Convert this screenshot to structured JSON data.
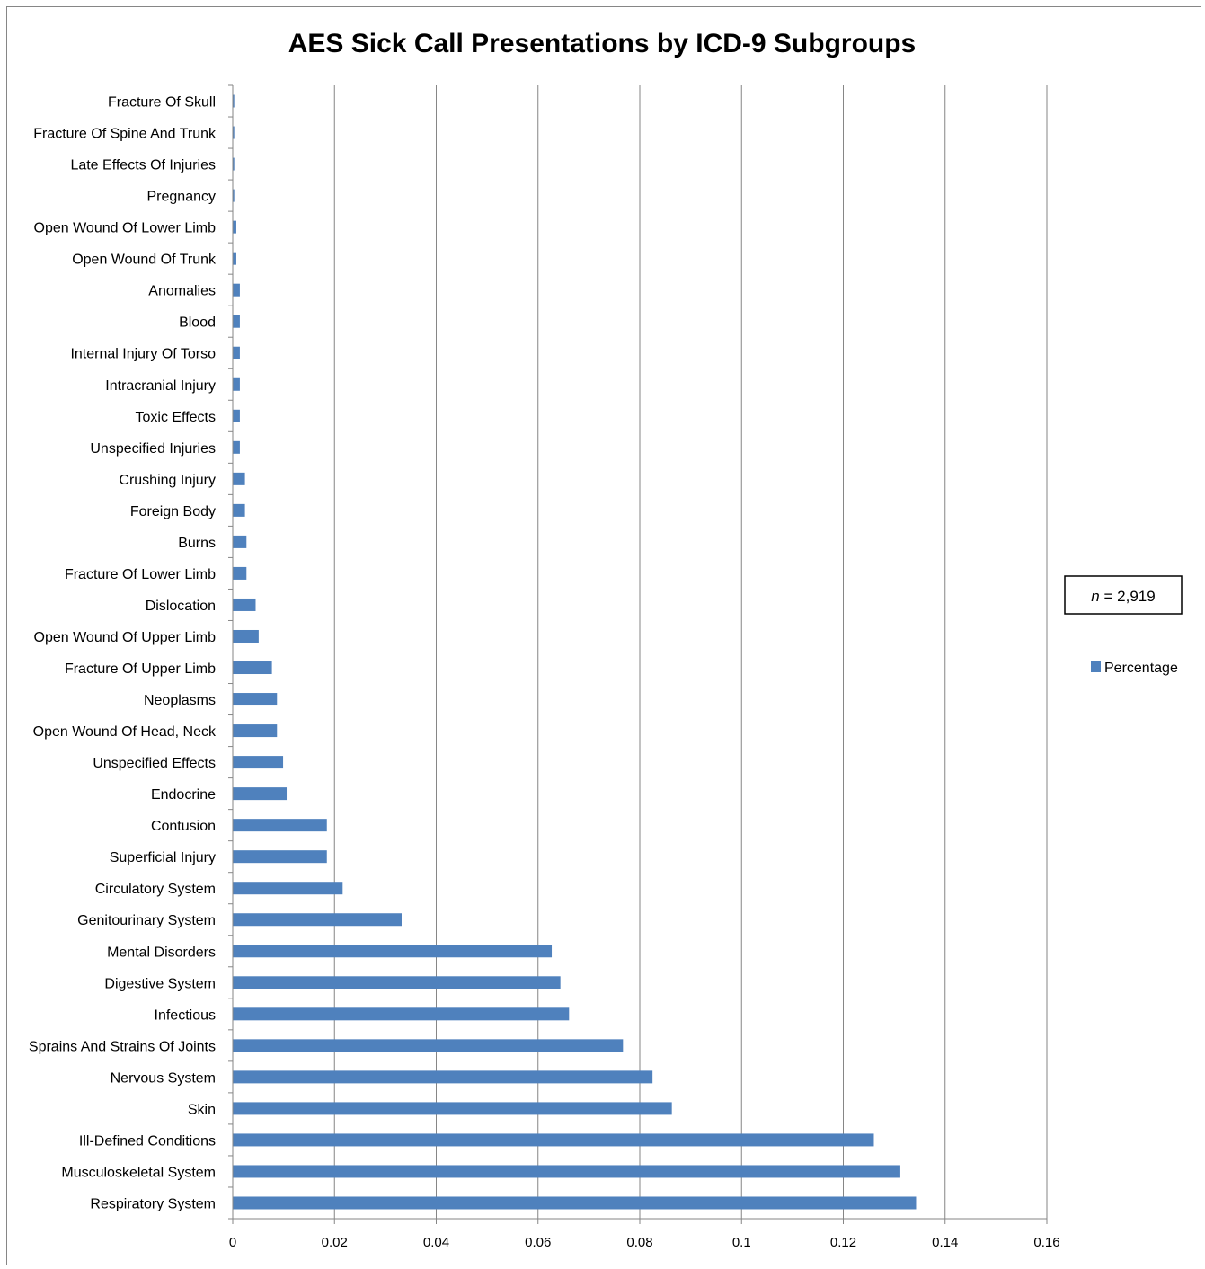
{
  "chart_data": {
    "type": "bar",
    "orientation": "horizontal",
    "title": "AES Sick Call Presentations by ICD-9 Subgroups",
    "xlabel": "",
    "ylabel": "",
    "xlim": [
      0,
      0.16
    ],
    "x_ticks": [
      "0",
      "0.02",
      "0.04",
      "0.06",
      "0.08",
      "0.1",
      "0.12",
      "0.14",
      "0.16"
    ],
    "x_tick_values": [
      0,
      0.02,
      0.04,
      0.06,
      0.08,
      0.1,
      0.12,
      0.14,
      0.16
    ],
    "grid": "vertical major gridlines",
    "legend_position": "right",
    "categories": [
      "Fracture Of Skull",
      "Fracture Of Spine And Trunk",
      "Late Effects Of Injuries",
      "Pregnancy",
      "Open Wound Of Lower Limb",
      "Open Wound Of Trunk",
      "Anomalies",
      "Blood",
      "Internal Injury Of Torso",
      "Intracranial Injury",
      "Toxic Effects",
      "Unspecified Injuries",
      "Crushing Injury",
      "Foreign Body",
      "Burns",
      "Fracture Of Lower Limb",
      "Dislocation",
      "Open Wound Of Upper Limb",
      "Fracture Of Upper Limb",
      "Neoplasms",
      "Open Wound Of Head, Neck",
      "Unspecified Effects",
      "Endocrine",
      "Contusion",
      "Superficial Injury",
      "Circulatory System",
      "Genitourinary System",
      "Mental Disorders",
      "Digestive System",
      "Infectious",
      "Sprains And Strains Of Joints",
      "Nervous System",
      "Skin",
      "Ill-Defined Conditions",
      "Musculoskeletal System",
      "Respiratory System"
    ],
    "series": [
      {
        "name": "Percentage",
        "color": "#4f81bd",
        "values": [
          0.0003,
          0.0003,
          0.0003,
          0.0003,
          0.0007,
          0.0007,
          0.0014,
          0.0014,
          0.0014,
          0.0014,
          0.0014,
          0.0014,
          0.0024,
          0.0024,
          0.0027,
          0.0027,
          0.0045,
          0.0051,
          0.0077,
          0.0087,
          0.0087,
          0.0099,
          0.0106,
          0.0185,
          0.0185,
          0.0216,
          0.0332,
          0.0627,
          0.0644,
          0.0661,
          0.0767,
          0.0825,
          0.0863,
          0.126,
          0.1312,
          0.1343
        ]
      }
    ],
    "annotation": {
      "italic_part": "n",
      "rest": " = 2,919"
    }
  }
}
